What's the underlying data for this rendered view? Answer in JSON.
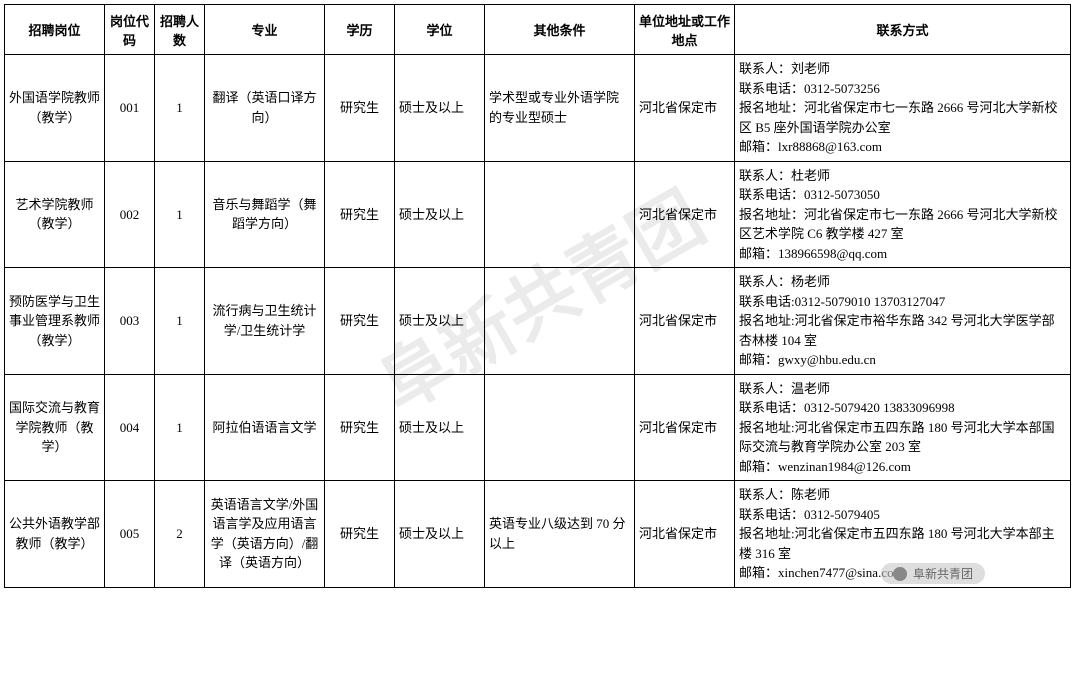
{
  "watermark_text": "阜新共青团",
  "footer_mark": "阜新共青团",
  "headers": {
    "h0": "招聘岗位",
    "h1": "岗位代码",
    "h2": "招聘人数",
    "h3": "专业",
    "h4": "学历",
    "h5": "学位",
    "h6": "其他条件",
    "h7": "单位地址或工作地点",
    "h8": "联系方式"
  },
  "rows": [
    {
      "position": "外国语学院教师（教学）",
      "code": "001",
      "count": "1",
      "major": "翻译（英语口译方向）",
      "edu": "研究生",
      "degree": "硕士及以上",
      "other": "学术型或专业外语学院的专业型硕士",
      "location": "河北省保定市",
      "contact": {
        "person": "联系人：刘老师",
        "phone": "联系电话：0312-5073256",
        "addr": "报名地址：河北省保定市七一东路 2666 号河北大学新校区 B5 座外国语学院办公室",
        "email": "邮箱：lxr88868@163.com"
      }
    },
    {
      "position": "艺术学院教师（教学）",
      "code": "002",
      "count": "1",
      "major": "音乐与舞蹈学（舞蹈学方向）",
      "edu": "研究生",
      "degree": "硕士及以上",
      "other": "",
      "location": "河北省保定市",
      "contact": {
        "person": "联系人：杜老师",
        "phone": "联系电话：0312-5073050",
        "addr": "报名地址：河北省保定市七一东路 2666 号河北大学新校区艺术学院 C6 教学楼 427 室",
        "email": "邮箱：138966598@qq.com"
      }
    },
    {
      "position": "预防医学与卫生事业管理系教师（教学）",
      "code": "003",
      "count": "1",
      "major": "流行病与卫生统计学/卫生统计学",
      "edu": "研究生",
      "degree": "硕士及以上",
      "other": "",
      "location": "河北省保定市",
      "contact": {
        "person": "联系人：杨老师",
        "phone": "联系电话:0312-5079010 13703127047",
        "addr": "报名地址:河北省保定市裕华东路 342 号河北大学医学部杏林楼 104 室",
        "email": "邮箱：gwxy@hbu.edu.cn"
      }
    },
    {
      "position": "国际交流与教育学院教师（教学）",
      "code": "004",
      "count": "1",
      "major": "阿拉伯语语言文学",
      "edu": "研究生",
      "degree": "硕士及以上",
      "other": "",
      "location": "河北省保定市",
      "contact": {
        "person": "联系人：温老师",
        "phone": "联系电话：0312-5079420 13833096998",
        "addr": "报名地址:河北省保定市五四东路 180 号河北大学本部国际交流与教育学院办公室 203 室",
        "email": "邮箱：wenzinan1984@126.com"
      }
    },
    {
      "position": "公共外语教学部教师（教学）",
      "code": "005",
      "count": "2",
      "major": "英语语言文学/外国语言学及应用语言学（英语方向）/翻译（英语方向）",
      "edu": "研究生",
      "degree": "硕士及以上",
      "other": "英语专业八级达到 70 分以上",
      "location": "河北省保定市",
      "contact": {
        "person": "联系人：陈老师",
        "phone": "联系电话：0312-5079405",
        "addr": "报名地址:河北省保定市五四东路 180 号河北大学本部主楼 316 室",
        "email": "邮箱：xinchen7477@sina.com"
      }
    }
  ],
  "table_style": {
    "border_color": "#000000",
    "background_color": "#ffffff",
    "font_family": "SimSun",
    "body_font_size": 13,
    "header_font_weight": "bold",
    "watermark_color_rgba": "rgba(0,0,0,0.08)",
    "watermark_fontsize": 72,
    "watermark_rotate_deg": -30
  }
}
